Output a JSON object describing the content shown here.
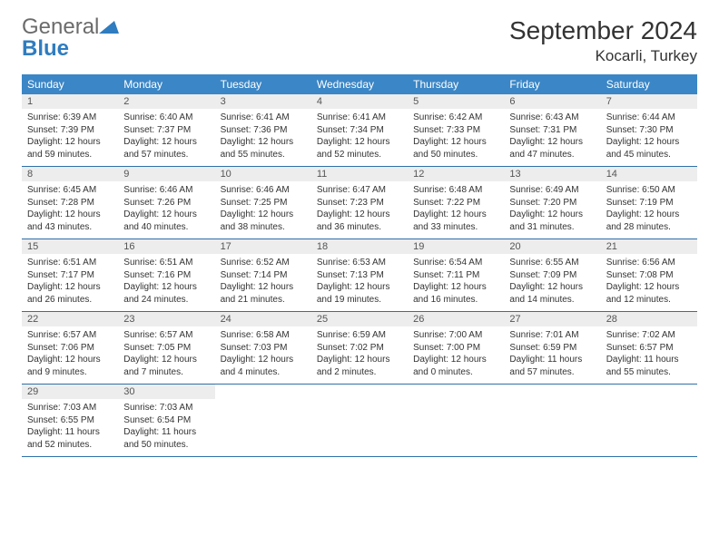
{
  "brand": {
    "word1": "General",
    "word2": "Blue"
  },
  "title": "September 2024",
  "location": "Kocarli, Turkey",
  "colors": {
    "header_bg": "#3b86c6",
    "header_text": "#ffffff",
    "daynum_bg": "#ededed",
    "row_border": "#2f6fa8",
    "logo_gray": "#6b6b6b",
    "logo_blue": "#2f7cc0"
  },
  "day_names": [
    "Sunday",
    "Monday",
    "Tuesday",
    "Wednesday",
    "Thursday",
    "Friday",
    "Saturday"
  ],
  "weeks": [
    [
      {
        "n": "1",
        "sunrise": "Sunrise: 6:39 AM",
        "sunset": "Sunset: 7:39 PM",
        "day1": "Daylight: 12 hours",
        "day2": "and 59 minutes."
      },
      {
        "n": "2",
        "sunrise": "Sunrise: 6:40 AM",
        "sunset": "Sunset: 7:37 PM",
        "day1": "Daylight: 12 hours",
        "day2": "and 57 minutes."
      },
      {
        "n": "3",
        "sunrise": "Sunrise: 6:41 AM",
        "sunset": "Sunset: 7:36 PM",
        "day1": "Daylight: 12 hours",
        "day2": "and 55 minutes."
      },
      {
        "n": "4",
        "sunrise": "Sunrise: 6:41 AM",
        "sunset": "Sunset: 7:34 PM",
        "day1": "Daylight: 12 hours",
        "day2": "and 52 minutes."
      },
      {
        "n": "5",
        "sunrise": "Sunrise: 6:42 AM",
        "sunset": "Sunset: 7:33 PM",
        "day1": "Daylight: 12 hours",
        "day2": "and 50 minutes."
      },
      {
        "n": "6",
        "sunrise": "Sunrise: 6:43 AM",
        "sunset": "Sunset: 7:31 PM",
        "day1": "Daylight: 12 hours",
        "day2": "and 47 minutes."
      },
      {
        "n": "7",
        "sunrise": "Sunrise: 6:44 AM",
        "sunset": "Sunset: 7:30 PM",
        "day1": "Daylight: 12 hours",
        "day2": "and 45 minutes."
      }
    ],
    [
      {
        "n": "8",
        "sunrise": "Sunrise: 6:45 AM",
        "sunset": "Sunset: 7:28 PM",
        "day1": "Daylight: 12 hours",
        "day2": "and 43 minutes."
      },
      {
        "n": "9",
        "sunrise": "Sunrise: 6:46 AM",
        "sunset": "Sunset: 7:26 PM",
        "day1": "Daylight: 12 hours",
        "day2": "and 40 minutes."
      },
      {
        "n": "10",
        "sunrise": "Sunrise: 6:46 AM",
        "sunset": "Sunset: 7:25 PM",
        "day1": "Daylight: 12 hours",
        "day2": "and 38 minutes."
      },
      {
        "n": "11",
        "sunrise": "Sunrise: 6:47 AM",
        "sunset": "Sunset: 7:23 PM",
        "day1": "Daylight: 12 hours",
        "day2": "and 36 minutes."
      },
      {
        "n": "12",
        "sunrise": "Sunrise: 6:48 AM",
        "sunset": "Sunset: 7:22 PM",
        "day1": "Daylight: 12 hours",
        "day2": "and 33 minutes."
      },
      {
        "n": "13",
        "sunrise": "Sunrise: 6:49 AM",
        "sunset": "Sunset: 7:20 PM",
        "day1": "Daylight: 12 hours",
        "day2": "and 31 minutes."
      },
      {
        "n": "14",
        "sunrise": "Sunrise: 6:50 AM",
        "sunset": "Sunset: 7:19 PM",
        "day1": "Daylight: 12 hours",
        "day2": "and 28 minutes."
      }
    ],
    [
      {
        "n": "15",
        "sunrise": "Sunrise: 6:51 AM",
        "sunset": "Sunset: 7:17 PM",
        "day1": "Daylight: 12 hours",
        "day2": "and 26 minutes."
      },
      {
        "n": "16",
        "sunrise": "Sunrise: 6:51 AM",
        "sunset": "Sunset: 7:16 PM",
        "day1": "Daylight: 12 hours",
        "day2": "and 24 minutes."
      },
      {
        "n": "17",
        "sunrise": "Sunrise: 6:52 AM",
        "sunset": "Sunset: 7:14 PM",
        "day1": "Daylight: 12 hours",
        "day2": "and 21 minutes."
      },
      {
        "n": "18",
        "sunrise": "Sunrise: 6:53 AM",
        "sunset": "Sunset: 7:13 PM",
        "day1": "Daylight: 12 hours",
        "day2": "and 19 minutes."
      },
      {
        "n": "19",
        "sunrise": "Sunrise: 6:54 AM",
        "sunset": "Sunset: 7:11 PM",
        "day1": "Daylight: 12 hours",
        "day2": "and 16 minutes."
      },
      {
        "n": "20",
        "sunrise": "Sunrise: 6:55 AM",
        "sunset": "Sunset: 7:09 PM",
        "day1": "Daylight: 12 hours",
        "day2": "and 14 minutes."
      },
      {
        "n": "21",
        "sunrise": "Sunrise: 6:56 AM",
        "sunset": "Sunset: 7:08 PM",
        "day1": "Daylight: 12 hours",
        "day2": "and 12 minutes."
      }
    ],
    [
      {
        "n": "22",
        "sunrise": "Sunrise: 6:57 AM",
        "sunset": "Sunset: 7:06 PM",
        "day1": "Daylight: 12 hours",
        "day2": "and 9 minutes."
      },
      {
        "n": "23",
        "sunrise": "Sunrise: 6:57 AM",
        "sunset": "Sunset: 7:05 PM",
        "day1": "Daylight: 12 hours",
        "day2": "and 7 minutes."
      },
      {
        "n": "24",
        "sunrise": "Sunrise: 6:58 AM",
        "sunset": "Sunset: 7:03 PM",
        "day1": "Daylight: 12 hours",
        "day2": "and 4 minutes."
      },
      {
        "n": "25",
        "sunrise": "Sunrise: 6:59 AM",
        "sunset": "Sunset: 7:02 PM",
        "day1": "Daylight: 12 hours",
        "day2": "and 2 minutes."
      },
      {
        "n": "26",
        "sunrise": "Sunrise: 7:00 AM",
        "sunset": "Sunset: 7:00 PM",
        "day1": "Daylight: 12 hours",
        "day2": "and 0 minutes."
      },
      {
        "n": "27",
        "sunrise": "Sunrise: 7:01 AM",
        "sunset": "Sunset: 6:59 PM",
        "day1": "Daylight: 11 hours",
        "day2": "and 57 minutes."
      },
      {
        "n": "28",
        "sunrise": "Sunrise: 7:02 AM",
        "sunset": "Sunset: 6:57 PM",
        "day1": "Daylight: 11 hours",
        "day2": "and 55 minutes."
      }
    ],
    [
      {
        "n": "29",
        "sunrise": "Sunrise: 7:03 AM",
        "sunset": "Sunset: 6:55 PM",
        "day1": "Daylight: 11 hours",
        "day2": "and 52 minutes."
      },
      {
        "n": "30",
        "sunrise": "Sunrise: 7:03 AM",
        "sunset": "Sunset: 6:54 PM",
        "day1": "Daylight: 11 hours",
        "day2": "and 50 minutes."
      },
      {
        "empty": true
      },
      {
        "empty": true
      },
      {
        "empty": true
      },
      {
        "empty": true
      },
      {
        "empty": true
      }
    ]
  ]
}
